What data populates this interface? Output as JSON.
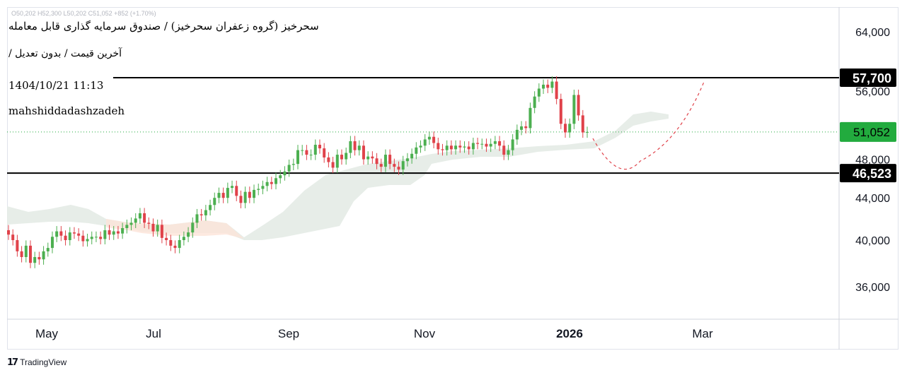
{
  "legend": {
    "title": "سحرخیز (گروه زعفران سحرخیز) / صندوق سرمایه گذاری قابل معامله",
    "subtitle": "آخرین قیمت / بدون تعدیل /",
    "date": "1404/10/21 11:13",
    "author": "mahshiddadashzadeh",
    "ohlc_faint": "O50,202 H52,300 L50,202 C51,052 +852 (+1.70%)"
  },
  "brand": {
    "icon": "tradingview-logo-icon",
    "name": "TradingView"
  },
  "colors": {
    "up": "#4caf50",
    "down": "#e0424a",
    "cloud": "#e4ebe5",
    "cloud_red": "#fde4d8",
    "current_price_bg": "#22ab3e",
    "level_bg": "#000000",
    "forecast": "#e0424a",
    "price_line": "#22ab3e"
  },
  "chart_data": {
    "type": "candlestick",
    "symbol_title": "سحرخیز (گروه زعفران سحرخیز) / صندوق سرمایه گذاری قابل معامله",
    "x_tick_labels": [
      "May",
      "Jul",
      "Sep",
      "Nov",
      "2026",
      "Mar"
    ],
    "y_tick_labels": [
      "64,000",
      "56,000",
      "48,000",
      "44,000",
      "40,000",
      "36,000"
    ],
    "y_ticks": [
      64000,
      56000,
      48000,
      44000,
      40000,
      36000
    ],
    "y_scale": "log",
    "ylim": [
      33500,
      71000
    ],
    "horizontal_levels": [
      {
        "value": 57700,
        "label": "57,700"
      },
      {
        "value": 46523,
        "label": "46,523"
      }
    ],
    "current_price": {
      "value": 51052,
      "label": "51,052"
    },
    "candles_close": [
      40500,
      40000,
      39000,
      38500,
      39500,
      38000,
      38500,
      38300,
      39000,
      39300,
      40300,
      40800,
      40400,
      40000,
      40700,
      40600,
      40400,
      39900,
      40100,
      40300,
      40300,
      40100,
      40900,
      40500,
      40800,
      40600,
      41100,
      41400,
      41600,
      42000,
      42500,
      41600,
      41500,
      40800,
      41400,
      40200,
      40000,
      39500,
      39300,
      40000,
      40300,
      40700,
      41600,
      42400,
      42300,
      42800,
      43300,
      44000,
      44500,
      44000,
      45000,
      45200,
      44200,
      43500,
      44600,
      44000,
      44800,
      44900,
      45200,
      45600,
      45400,
      46000,
      46300,
      46700,
      47400,
      47500,
      49000,
      49000,
      48500,
      48500,
      49600,
      49200,
      48200,
      47700,
      47100,
      48500,
      48000,
      48700,
      50000,
      49000,
      49500,
      48000,
      48300,
      48100,
      47500,
      47200,
      48500,
      47500,
      47200,
      46900,
      47800,
      48100,
      48600,
      49300,
      49500,
      50200,
      50500,
      49800,
      49100,
      49000,
      49500,
      49100,
      49500,
      49300,
      49400,
      49100,
      49800,
      49700,
      49700,
      49400,
      49700,
      50000,
      49500,
      48500,
      49000,
      50200,
      51300,
      51700,
      51500,
      53900,
      55300,
      56300,
      56800,
      56400,
      57200,
      55000,
      52000,
      51000,
      52000,
      55500,
      53000,
      51000,
      51052
    ],
    "forecast_path": "dashed curve from ~51,000 in mid Jan 2026 down to ~47,000 in early Feb, then up to ~58,000 by early Mar"
  }
}
